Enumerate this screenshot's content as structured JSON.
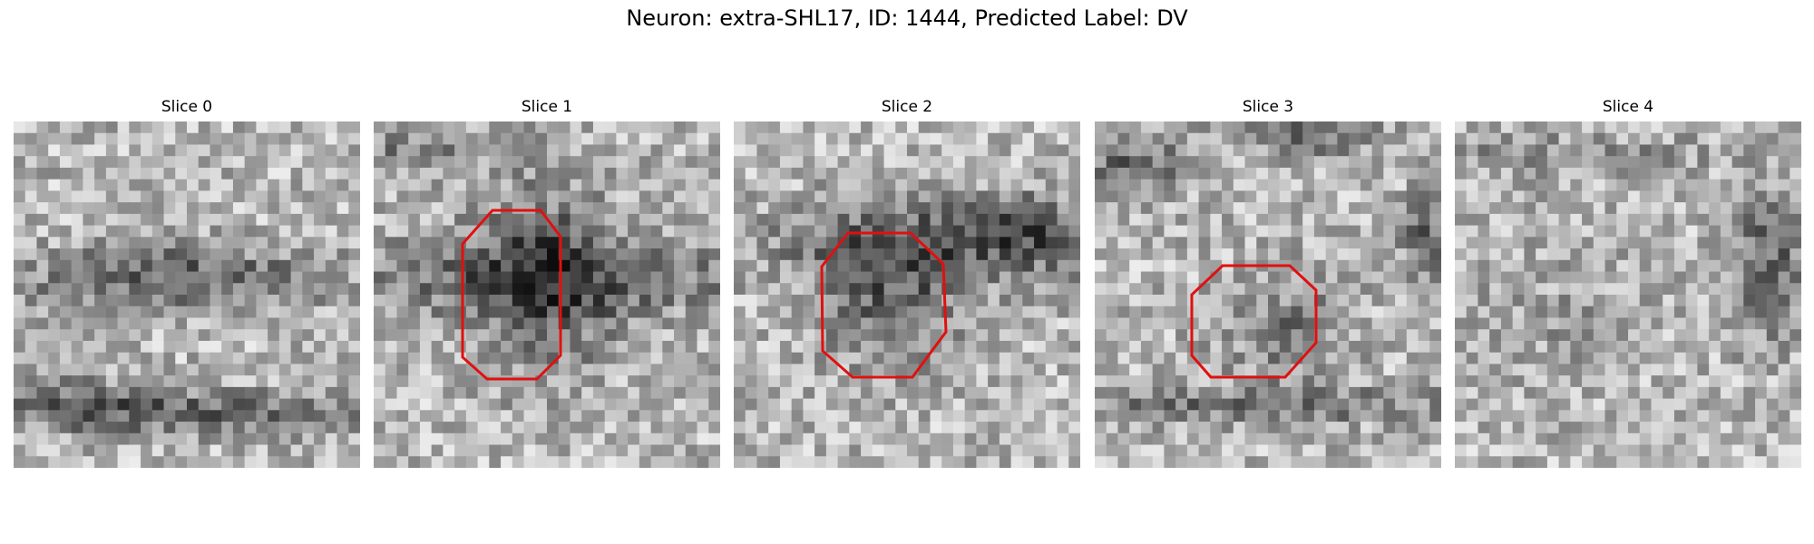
{
  "figure": {
    "title": "Neuron: extra-SHL17, ID: 1444, Predicted Label: DV"
  },
  "panels": [
    {
      "title": "Slice 0",
      "outlined": false,
      "seed": 11,
      "pattern": "band-arc"
    },
    {
      "title": "Slice 1",
      "outlined": true,
      "seed": 23,
      "pattern": "blob-band"
    },
    {
      "title": "Slice 2",
      "outlined": true,
      "seed": 37,
      "pattern": "blob-band-high"
    },
    {
      "title": "Slice 3",
      "outlined": true,
      "seed": 41,
      "pattern": "ring-low"
    },
    {
      "title": "Slice 4",
      "outlined": false,
      "seed": 53,
      "pattern": "side-dark"
    }
  ],
  "style": {
    "outline_color": "#e01010",
    "grid_cells": 30
  }
}
